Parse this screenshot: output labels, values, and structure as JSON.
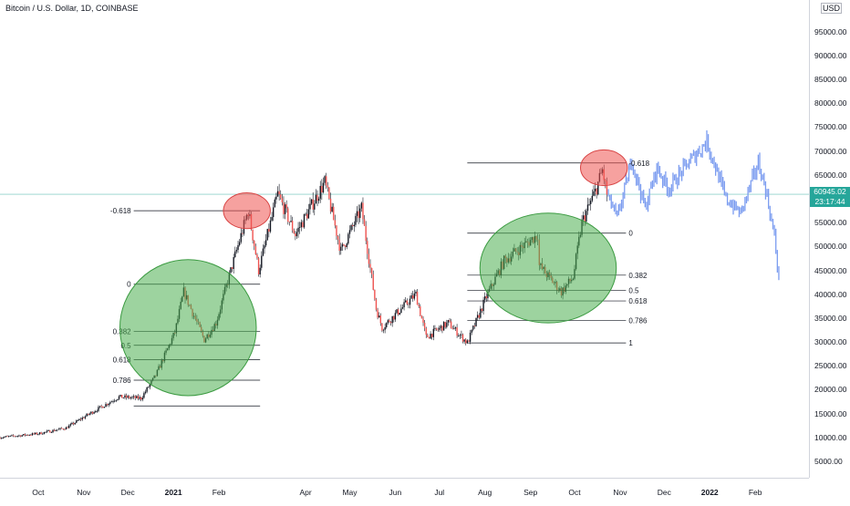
{
  "chart_data": {
    "type": "candlestick",
    "title": "Bitcoin / U.S. Dollar, 1D, COINBASE",
    "currency": "USD",
    "current_price": "60945.02",
    "countdown": "23:17:44",
    "y_ticks": [
      5000,
      10000,
      15000,
      20000,
      25000,
      30000,
      35000,
      40000,
      45000,
      50000,
      55000,
      60000,
      65000,
      70000,
      75000,
      80000,
      85000,
      90000,
      95000
    ],
    "y_tick_labels": [
      "5000.00",
      "10000.00",
      "15000.00",
      "20000.00",
      "25000.00",
      "30000.00",
      "35000.00",
      "40000.00",
      "45000.00",
      "50000.00",
      "55000.00",
      "60000.00",
      "65000.00",
      "70000.00",
      "75000.00",
      "80000.00",
      "85000.00",
      "90000.00",
      "95000.00"
    ],
    "ylim": [
      0,
      100000
    ],
    "x_ticks": [
      {
        "label": "Oct",
        "date": "2020-10-01"
      },
      {
        "label": "Nov",
        "date": "2020-11-01"
      },
      {
        "label": "Dec",
        "date": "2020-12-01"
      },
      {
        "label": "2021",
        "date": "2021-01-01"
      },
      {
        "label": "Feb",
        "date": "2021-02-01"
      },
      {
        "label": "Apr",
        "date": "2021-04-01"
      },
      {
        "label": "May",
        "date": "2021-05-01"
      },
      {
        "label": "Jun",
        "date": "2021-06-01"
      },
      {
        "label": "Jul",
        "date": "2021-07-01"
      },
      {
        "label": "Aug",
        "date": "2021-08-01"
      },
      {
        "label": "Sep",
        "date": "2021-09-01"
      },
      {
        "label": "Oct",
        "date": "2021-10-01"
      },
      {
        "label": "Nov",
        "date": "2021-11-01"
      },
      {
        "label": "Dec",
        "date": "2021-12-01"
      },
      {
        "label": "2022",
        "date": "2022-01-01"
      },
      {
        "label": "Feb",
        "date": "2022-02-01"
      }
    ],
    "xlim": [
      "2020-09-05",
      "2022-02-22"
    ],
    "price_path": [
      {
        "date": "2020-09-05",
        "close": 10000
      },
      {
        "date": "2020-10-01",
        "close": 10800
      },
      {
        "date": "2020-10-20",
        "close": 12000
      },
      {
        "date": "2020-11-05",
        "close": 15000
      },
      {
        "date": "2020-11-25",
        "close": 18500
      },
      {
        "date": "2020-12-10",
        "close": 18200
      },
      {
        "date": "2020-12-20",
        "close": 23000
      },
      {
        "date": "2021-01-02",
        "close": 32000
      },
      {
        "date": "2021-01-08",
        "close": 40500
      },
      {
        "date": "2021-01-22",
        "close": 30500
      },
      {
        "date": "2021-01-30",
        "close": 34000
      },
      {
        "date": "2021-02-10",
        "close": 46000
      },
      {
        "date": "2021-02-21",
        "close": 57500
      },
      {
        "date": "2021-02-28",
        "close": 45000
      },
      {
        "date": "2021-03-13",
        "close": 61000
      },
      {
        "date": "2021-03-25",
        "close": 52500
      },
      {
        "date": "2021-04-14",
        "close": 63500
      },
      {
        "date": "2021-04-25",
        "close": 49000
      },
      {
        "date": "2021-05-09",
        "close": 58000
      },
      {
        "date": "2021-05-19",
        "close": 37000
      },
      {
        "date": "2021-05-23",
        "close": 33000
      },
      {
        "date": "2021-06-15",
        "close": 40000
      },
      {
        "date": "2021-06-22",
        "close": 31000
      },
      {
        "date": "2021-07-07",
        "close": 34000
      },
      {
        "date": "2021-07-20",
        "close": 29800
      },
      {
        "date": "2021-08-02",
        "close": 39500
      },
      {
        "date": "2021-08-14",
        "close": 47000
      },
      {
        "date": "2021-09-06",
        "close": 52500
      },
      {
        "date": "2021-09-07",
        "close": 46000
      },
      {
        "date": "2021-09-22",
        "close": 40500
      },
      {
        "date": "2021-09-30",
        "close": 43500
      },
      {
        "date": "2021-10-06",
        "close": 55000
      },
      {
        "date": "2021-10-15",
        "close": 61500
      },
      {
        "date": "2021-10-20",
        "close": 66000
      },
      {
        "date": "2021-10-23",
        "close": 61000
      }
    ],
    "projection_path": [
      {
        "date": "2021-10-23",
        "close": 61000
      },
      {
        "date": "2021-10-30",
        "close": 56000
      },
      {
        "date": "2021-11-09",
        "close": 68000
      },
      {
        "date": "2021-11-18",
        "close": 58000
      },
      {
        "date": "2021-11-26",
        "close": 66500
      },
      {
        "date": "2021-12-04",
        "close": 62000
      },
      {
        "date": "2021-12-16",
        "close": 67000
      },
      {
        "date": "2021-12-30",
        "close": 72000
      },
      {
        "date": "2022-01-12",
        "close": 60000
      },
      {
        "date": "2022-01-22",
        "close": 57000
      },
      {
        "date": "2022-02-03",
        "close": 67500
      },
      {
        "date": "2022-02-08",
        "close": 62000
      },
      {
        "date": "2022-02-14",
        "close": 52000
      },
      {
        "date": "2022-02-17",
        "close": 43000
      }
    ],
    "fib_retracements": [
      {
        "x_start": "2020-12-05",
        "x_end": "2021-03-01",
        "levels": [
          {
            "label": "-0.618",
            "value": 57500
          },
          {
            "label": "0",
            "value": 42100
          },
          {
            "label": "0.382",
            "value": 32200
          },
          {
            "label": "0.5",
            "value": 29300
          },
          {
            "label": "0.618",
            "value": 26300
          },
          {
            "label": "0.786",
            "value": 22000
          },
          {
            "label": "",
            "value": 16600
          }
        ]
      },
      {
        "x_start": "2021-07-20",
        "x_end": "2021-11-05",
        "levels": [
          {
            "label": "-0.618",
            "value": 67500
          },
          {
            "label": "0",
            "value": 52800
          },
          {
            "label": "0.382",
            "value": 44000
          },
          {
            "label": "0.5",
            "value": 40800
          },
          {
            "label": "0.618",
            "value": 38600
          },
          {
            "label": "0.786",
            "value": 34500
          },
          {
            "label": "1",
            "value": 29800
          }
        ]
      }
    ],
    "annotations": [
      {
        "shape": "ellipse",
        "color": "green",
        "date": "2021-01-11",
        "value": 33000,
        "span_days": 32,
        "span_value": 28500
      },
      {
        "shape": "ellipse",
        "color": "green",
        "date": "2021-09-13",
        "value": 45500,
        "span_days": 32,
        "span_value": 23000
      },
      {
        "shape": "circle",
        "color": "red",
        "date": "2021-02-20",
        "value": 57500,
        "span_days": 11,
        "span_value": 7500
      },
      {
        "shape": "circle",
        "color": "red",
        "date": "2021-10-21",
        "value": 66500,
        "span_days": 11,
        "span_value": 7500
      }
    ],
    "colors": {
      "up": "#26a69a",
      "down": "#ef5350",
      "candle_body": "#131722",
      "projection": "#7b9cf0",
      "fib_line": "#131722",
      "price_line": "#26a69a",
      "green_zone_fill": "rgba(76,175,80,0.55)",
      "green_zone_stroke": "#3a9a40",
      "red_zone_fill": "rgba(239,83,80,0.55)",
      "red_zone_stroke": "#d84343"
    }
  }
}
